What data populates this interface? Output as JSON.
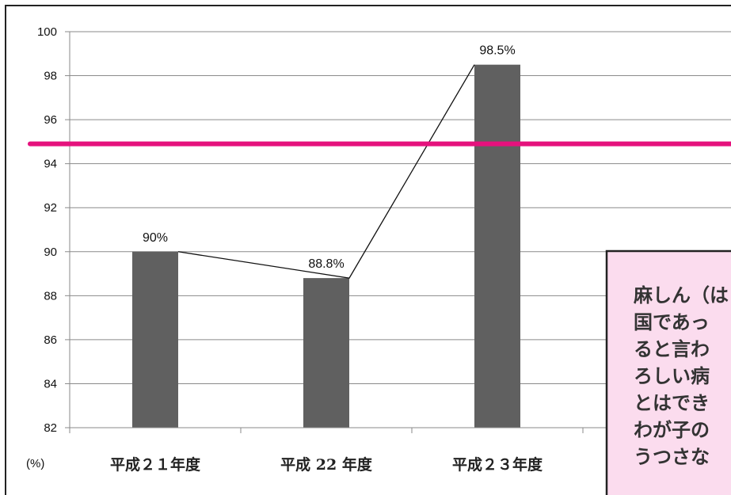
{
  "colors": {
    "bar": "#606060",
    "target_line": "#e5127d",
    "highlight_label": "#e5127d",
    "grid": "#8a8a8a",
    "callout_bg": "#fbdcee",
    "callout_border": "#222222",
    "frame": "#222222"
  },
  "chart_data": {
    "type": "bar",
    "categories": [
      "平成２１年度",
      "平成 22 年度",
      "平成２３年度"
    ],
    "values": [
      90,
      88.8,
      98.5
    ],
    "data_labels": [
      "90%",
      "88.8%",
      "98.5%"
    ],
    "unit_label": "(%)",
    "ylim": [
      82,
      100
    ],
    "yticks": [
      82,
      84,
      86,
      88,
      90,
      92,
      94,
      96,
      98,
      100
    ],
    "grid": true,
    "reference_line": 94.9,
    "connecting_line": true
  },
  "callout": {
    "lines": [
      "麻しん（は",
      "国であっ",
      "ると言わ",
      "ろしい病",
      "とはでき",
      "わが子の",
      "うつさな"
    ]
  }
}
